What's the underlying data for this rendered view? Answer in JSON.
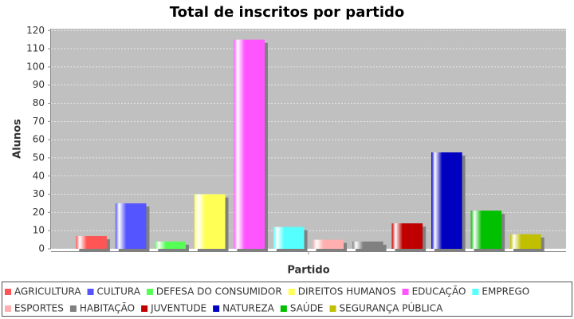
{
  "chart_data": {
    "type": "bar",
    "title": "Total de inscritos por partido",
    "x_label": "Partido",
    "y_label": "Alunos",
    "categories": [
      null
    ],
    "series": [
      {
        "name": "AGRICULTURA",
        "color": "#ff5555",
        "values": [
          7
        ]
      },
      {
        "name": "CULTURA",
        "color": "#5555ff",
        "values": [
          25
        ]
      },
      {
        "name": "DEFESA DO CONSUMIDOR",
        "color": "#55ff55",
        "values": [
          4
        ]
      },
      {
        "name": "DIREITOS HUMANOS",
        "color": "#ffff55",
        "values": [
          30
        ]
      },
      {
        "name": "EDUCAÇÃO",
        "color": "#ff55ff",
        "values": [
          115
        ]
      },
      {
        "name": "EMPREGO",
        "color": "#55ffff",
        "values": [
          12
        ]
      },
      {
        "name": "ESPORTES",
        "color": "#ffafaf",
        "values": [
          5
        ]
      },
      {
        "name": "HABITAÇÃO",
        "color": "#808080",
        "values": [
          4
        ]
      },
      {
        "name": "JUVENTUDE",
        "color": "#c00000",
        "values": [
          14
        ]
      },
      {
        "name": "NATUREZA",
        "color": "#0000c0",
        "values": [
          53
        ]
      },
      {
        "name": "SAÚDE",
        "color": "#00c000",
        "values": [
          21
        ]
      },
      {
        "name": "SEGURANÇA PÚBLICA",
        "color": "#c0c000",
        "values": [
          8
        ]
      }
    ],
    "ylim": [
      0,
      121
    ],
    "yticks": [
      0,
      10,
      20,
      30,
      40,
      50,
      60,
      70,
      80,
      90,
      100,
      110,
      120
    ],
    "grid": true,
    "legend": "bottom"
  }
}
